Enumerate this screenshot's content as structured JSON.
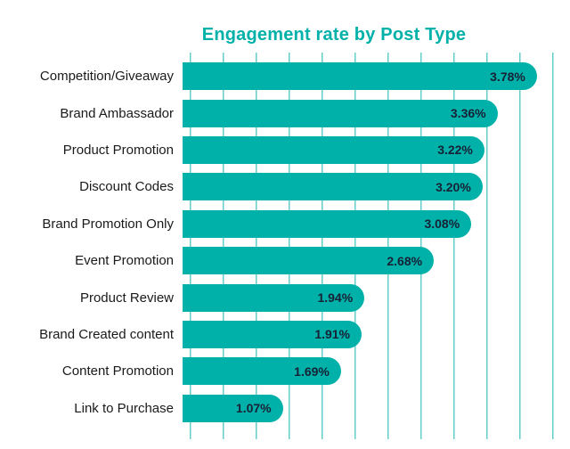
{
  "title": "Engagement rate by Post Type",
  "colors": {
    "bar": "#00b1a9",
    "gridline": "#63cdc9",
    "title": "#00b1a9",
    "category_label": "#1a1a1a",
    "value_label": "#172135",
    "background": "#ffffff"
  },
  "chart_data": {
    "type": "bar",
    "orientation": "horizontal",
    "title": "Engagement rate by Post Type",
    "categories": [
      "Competition/Giveaway",
      "Brand Ambassador",
      "Product Promotion",
      "Discount Codes",
      "Brand Promotion Only",
      "Event Promotion",
      "Product Review",
      "Brand Created content",
      "Content Promotion",
      "Link to Purchase"
    ],
    "values": [
      3.78,
      3.36,
      3.22,
      3.2,
      3.08,
      2.68,
      1.94,
      1.91,
      1.69,
      1.07
    ],
    "value_labels": [
      "3.78%",
      "3.36%",
      "3.22%",
      "3.20%",
      "3.08%",
      "2.68%",
      "1.94%",
      "1.91%",
      "1.69%",
      "1.07%"
    ],
    "xlabel": "",
    "ylabel": "",
    "xlim": [
      0,
      4.0
    ],
    "grid": "vertical",
    "legend": "none",
    "value_label_position": "inside-end"
  }
}
